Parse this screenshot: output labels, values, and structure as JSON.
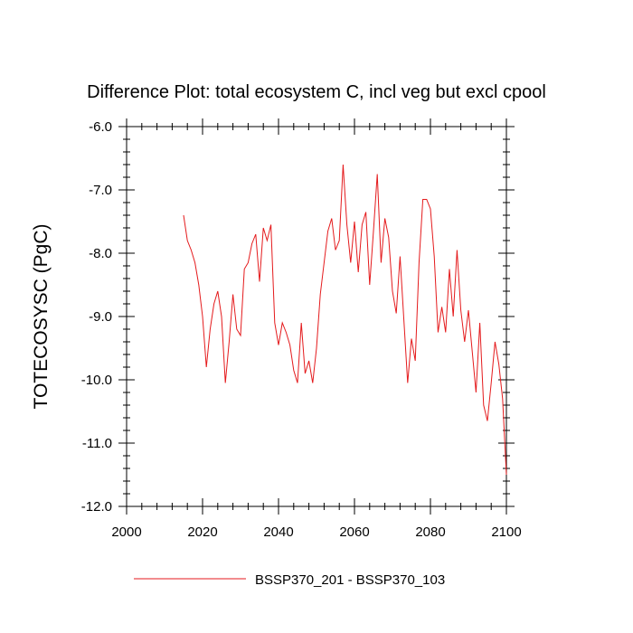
{
  "chart_data": {
    "type": "line",
    "title": "Difference Plot: total ecosystem C, incl veg but excl cpool",
    "xlabel": "",
    "ylabel": "TOTECOSYSC  (PgC)",
    "xlim": [
      2000,
      2100
    ],
    "ylim": [
      -12.0,
      -6.0
    ],
    "x_ticks": [
      "2000",
      "2020",
      "2040",
      "2060",
      "2080",
      "2100"
    ],
    "y_ticks": [
      "-6.0",
      "-7.0",
      "-8.0",
      "-9.0",
      "-10.0",
      "-11.0",
      "-12.0"
    ],
    "grid": false,
    "legend_position": "bottom",
    "series": [
      {
        "name": "BSSP370_201 - BSSP370_103",
        "color": "#e41a1c",
        "x": [
          2015,
          2016,
          2017,
          2018,
          2019,
          2020,
          2021,
          2022,
          2023,
          2024,
          2025,
          2026,
          2027,
          2028,
          2029,
          2030,
          2031,
          2032,
          2033,
          2034,
          2035,
          2036,
          2037,
          2038,
          2039,
          2040,
          2041,
          2042,
          2043,
          2044,
          2045,
          2046,
          2047,
          2048,
          2049,
          2050,
          2051,
          2052,
          2053,
          2054,
          2055,
          2056,
          2057,
          2058,
          2059,
          2060,
          2061,
          2062,
          2063,
          2064,
          2065,
          2066,
          2067,
          2068,
          2069,
          2070,
          2071,
          2072,
          2073,
          2074,
          2075,
          2076,
          2077,
          2078,
          2079,
          2080,
          2081,
          2082,
          2083,
          2084,
          2085,
          2086,
          2087,
          2088,
          2089,
          2090,
          2091,
          2092,
          2093,
          2094,
          2095,
          2096,
          2097,
          2098,
          2099,
          2100
        ],
        "values": [
          -7.4,
          -7.8,
          -7.95,
          -8.15,
          -8.5,
          -9.0,
          -9.8,
          -9.2,
          -8.8,
          -8.6,
          -9.0,
          -10.05,
          -9.4,
          -8.65,
          -9.2,
          -9.3,
          -8.25,
          -8.15,
          -7.85,
          -7.7,
          -8.45,
          -7.6,
          -7.8,
          -7.55,
          -9.1,
          -9.45,
          -9.1,
          -9.25,
          -9.45,
          -9.85,
          -10.05,
          -9.1,
          -9.9,
          -9.7,
          -10.05,
          -9.5,
          -8.65,
          -8.15,
          -7.65,
          -7.45,
          -7.95,
          -7.8,
          -6.6,
          -7.55,
          -8.15,
          -7.5,
          -8.3,
          -7.55,
          -7.35,
          -8.5,
          -7.65,
          -6.75,
          -8.15,
          -7.45,
          -7.75,
          -8.6,
          -8.95,
          -8.05,
          -9.05,
          -10.05,
          -9.35,
          -9.7,
          -8.15,
          -7.15,
          -7.15,
          -7.3,
          -8.05,
          -9.25,
          -8.85,
          -9.25,
          -8.25,
          -9.0,
          -7.95,
          -8.9,
          -9.4,
          -8.9,
          -9.55,
          -10.2,
          -9.1,
          -10.4,
          -10.65,
          -10.05,
          -9.4,
          -9.75,
          -10.3,
          -11.5
        ]
      }
    ]
  }
}
